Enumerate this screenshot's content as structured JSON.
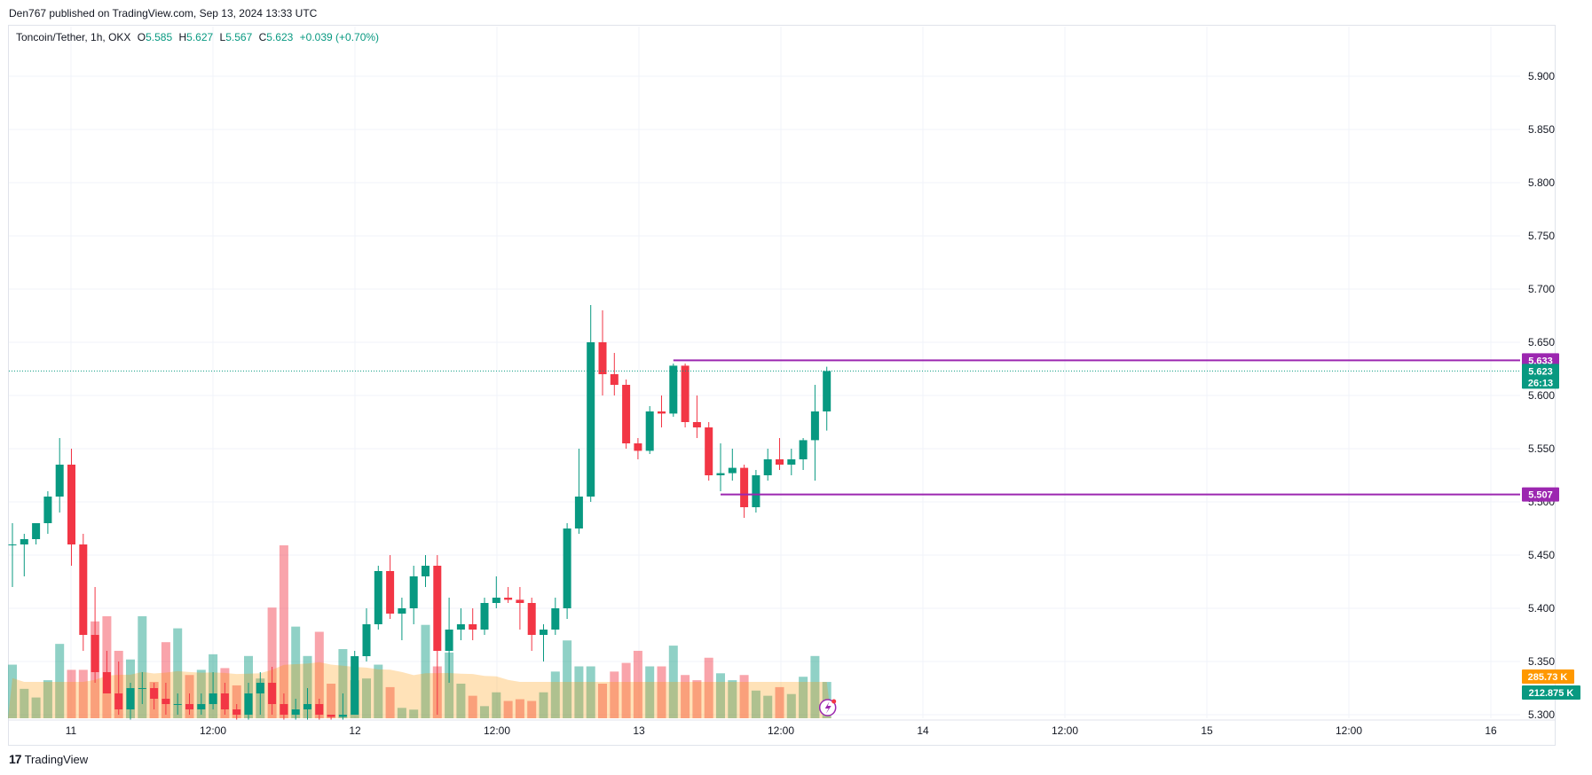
{
  "header": {
    "published": "Den767 published on TradingView.com, Sep 13, 2024 13:33 UTC"
  },
  "legend": {
    "symbol": "Toncoin/Tether, 1h, OKX",
    "o_label": "O",
    "o_val": "5.585",
    "h_label": "H",
    "h_val": "5.627",
    "l_label": "L",
    "l_val": "5.567",
    "c_label": "C",
    "c_val": "5.623",
    "change": "+0.039 (+0.70%)"
  },
  "footer": {
    "brand": "TradingView",
    "logo_glyph": "17"
  },
  "colors": {
    "up": "#089981",
    "down": "#f23645",
    "level": "#9c27b0",
    "vol_ma": "#ff9800"
  },
  "chart_data": {
    "type": "candlestick",
    "x_tick_labels": [
      "11",
      "12:00",
      "12",
      "12:00",
      "13",
      "12:00",
      "14",
      "12:00",
      "15",
      "12:00",
      "16"
    ],
    "y_tick_labels": [
      "5.900",
      "5.850",
      "5.800",
      "5.750",
      "5.700",
      "5.650",
      "5.600",
      "5.550",
      "5.500",
      "5.450",
      "5.400",
      "5.350",
      "5.300"
    ],
    "ylim": [
      5.295,
      5.96
    ],
    "grid": true,
    "candles": [
      [
        5.46,
        5.48,
        5.42,
        5.46
      ],
      [
        5.46,
        5.47,
        5.43,
        5.465
      ],
      [
        5.465,
        5.48,
        5.46,
        5.48
      ],
      [
        5.48,
        5.51,
        5.47,
        5.505
      ],
      [
        5.505,
        5.56,
        5.49,
        5.535
      ],
      [
        5.535,
        5.55,
        5.44,
        5.46
      ],
      [
        5.46,
        5.47,
        5.36,
        5.375
      ],
      [
        5.375,
        5.42,
        5.33,
        5.34
      ],
      [
        5.34,
        5.36,
        5.32,
        5.32
      ],
      [
        5.32,
        5.35,
        5.3,
        5.305
      ],
      [
        5.305,
        5.33,
        5.295,
        5.325
      ],
      [
        5.325,
        5.34,
        5.31,
        5.325
      ],
      [
        5.325,
        5.33,
        5.305,
        5.315
      ],
      [
        5.315,
        5.33,
        5.3,
        5.31
      ],
      [
        5.31,
        5.32,
        5.3,
        5.31
      ],
      [
        5.31,
        5.32,
        5.3,
        5.305
      ],
      [
        5.305,
        5.32,
        5.3,
        5.31
      ],
      [
        5.31,
        5.34,
        5.305,
        5.32
      ],
      [
        5.32,
        5.33,
        5.3,
        5.305
      ],
      [
        5.305,
        5.31,
        5.295,
        5.3
      ],
      [
        5.3,
        5.33,
        5.295,
        5.32
      ],
      [
        5.32,
        5.34,
        5.3,
        5.33
      ],
      [
        5.33,
        5.345,
        5.3,
        5.31
      ],
      [
        5.31,
        5.32,
        5.295,
        5.3
      ],
      [
        5.3,
        5.315,
        5.295,
        5.305
      ],
      [
        5.305,
        5.325,
        5.295,
        5.31
      ],
      [
        5.31,
        5.315,
        5.295,
        5.3
      ],
      [
        5.3,
        5.3,
        5.295,
        5.298
      ],
      [
        5.298,
        5.32,
        5.295,
        5.3
      ],
      [
        5.3,
        5.36,
        5.3,
        5.355
      ],
      [
        5.355,
        5.4,
        5.35,
        5.385
      ],
      [
        5.385,
        5.44,
        5.38,
        5.435
      ],
      [
        5.435,
        5.45,
        5.39,
        5.395
      ],
      [
        5.395,
        5.41,
        5.37,
        5.4
      ],
      [
        5.4,
        5.44,
        5.385,
        5.43
      ],
      [
        5.43,
        5.45,
        5.42,
        5.44
      ],
      [
        5.44,
        5.45,
        5.3,
        5.36
      ],
      [
        5.36,
        5.41,
        5.33,
        5.38
      ],
      [
        5.38,
        5.4,
        5.37,
        5.385
      ],
      [
        5.385,
        5.4,
        5.37,
        5.38
      ],
      [
        5.38,
        5.41,
        5.375,
        5.405
      ],
      [
        5.405,
        5.43,
        5.4,
        5.41
      ],
      [
        5.41,
        5.42,
        5.405,
        5.408
      ],
      [
        5.408,
        5.42,
        5.38,
        5.405
      ],
      [
        5.405,
        5.41,
        5.36,
        5.375
      ],
      [
        5.375,
        5.385,
        5.35,
        5.38
      ],
      [
        5.38,
        5.41,
        5.375,
        5.4
      ],
      [
        5.4,
        5.48,
        5.39,
        5.475
      ],
      [
        5.475,
        5.55,
        5.47,
        5.505
      ],
      [
        5.505,
        5.685,
        5.5,
        5.65
      ],
      [
        5.65,
        5.68,
        5.6,
        5.62
      ],
      [
        5.62,
        5.64,
        5.6,
        5.61
      ],
      [
        5.61,
        5.615,
        5.55,
        5.555
      ],
      [
        5.555,
        5.56,
        5.54,
        5.548
      ],
      [
        5.548,
        5.59,
        5.545,
        5.585
      ],
      [
        5.585,
        5.6,
        5.57,
        5.583
      ],
      [
        5.583,
        5.63,
        5.58,
        5.628
      ],
      [
        5.628,
        5.63,
        5.57,
        5.575
      ],
      [
        5.575,
        5.6,
        5.56,
        5.57
      ],
      [
        5.57,
        5.575,
        5.52,
        5.525
      ],
      [
        5.525,
        5.555,
        5.51,
        5.527
      ],
      [
        5.527,
        5.55,
        5.52,
        5.532
      ],
      [
        5.532,
        5.535,
        5.485,
        5.495
      ],
      [
        5.495,
        5.53,
        5.49,
        5.525
      ],
      [
        5.525,
        5.55,
        5.52,
        5.54
      ],
      [
        5.54,
        5.56,
        5.53,
        5.535
      ],
      [
        5.535,
        5.55,
        5.525,
        5.54
      ],
      [
        5.54,
        5.56,
        5.53,
        5.558
      ],
      [
        5.558,
        5.61,
        5.52,
        5.585
      ],
      [
        5.585,
        5.627,
        5.567,
        5.623
      ]
    ],
    "volume_rel": [
      0.31,
      0.17,
      0.12,
      0.22,
      0.43,
      0.28,
      0.28,
      0.56,
      0.59,
      0.39,
      0.34,
      0.59,
      0.21,
      0.44,
      0.52,
      0.25,
      0.28,
      0.37,
      0.29,
      0.19,
      0.36,
      0.23,
      0.64,
      1.0,
      0.53,
      0.36,
      0.5,
      0.2,
      0.4,
      0.22,
      0.23,
      0.31,
      0.18,
      0.06,
      0.05,
      0.54,
      0.3,
      0.38,
      0.2,
      0.13,
      0.07,
      0.15,
      0.1,
      0.11,
      0.1,
      0.15,
      0.27,
      0.45,
      0.3,
      0.3,
      0.2,
      0.27,
      0.32,
      0.39,
      0.3,
      0.3,
      0.42,
      0.25,
      0.22,
      0.35,
      0.26,
      0.22,
      0.25,
      0.16,
      0.13,
      0.18,
      0.14,
      0.24,
      0.36,
      0.21
    ],
    "up_volume_rel": [
      0.31,
      0.17,
      0.12,
      0.22,
      0.43,
      0.28,
      0.28,
      0.56,
      0.59,
      0.39,
      0.34,
      0.59,
      0.21,
      0.44,
      0.52,
      0.25,
      0.28,
      0.37,
      0.29,
      0.19,
      0.36,
      0.23,
      0.64,
      1.0,
      0.53,
      0.36,
      0.5,
      0.2,
      0.4,
      0.22,
      0.23,
      0.31,
      0.18,
      0.06,
      0.05,
      0.54,
      0.3,
      0.38,
      0.2,
      0.13,
      0.07,
      0.15,
      0.1,
      0.11,
      0.1,
      0.15,
      0.27,
      0.45,
      0.3,
      0.3,
      0.2,
      0.27,
      0.32,
      0.39,
      0.3,
      0.3,
      0.42,
      0.25,
      0.22,
      0.35,
      0.26,
      0.22,
      0.25,
      0.16,
      0.13,
      0.18,
      0.14,
      0.24,
      0.36,
      0.21
    ],
    "levels": [
      {
        "price": 5.633,
        "label": "5.633",
        "start_bar": 56
      },
      {
        "price": 5.507,
        "label": "5.507",
        "start_bar": 60
      }
    ],
    "last_price": {
      "price": 5.623,
      "label": "5.623",
      "countdown": "26:13"
    },
    "volume_labels": {
      "ma": "285.73 K",
      "vol": "212.875 K"
    }
  }
}
